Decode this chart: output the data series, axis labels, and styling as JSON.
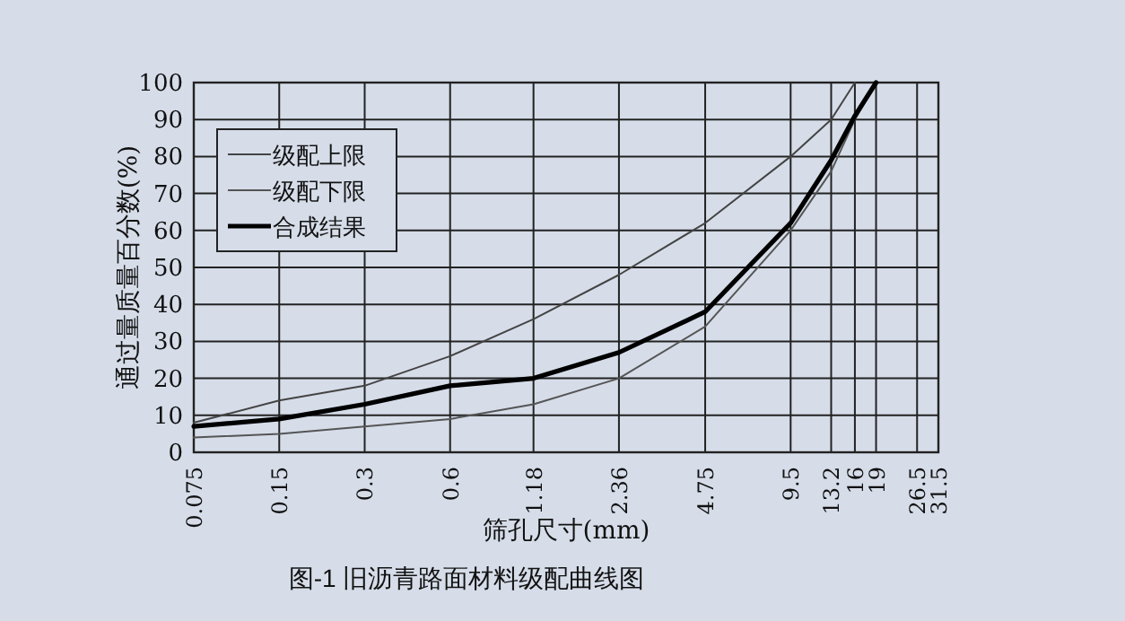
{
  "chart_data": {
    "type": "line",
    "xlabel": "筛孔尺寸(mm)",
    "ylabel": "通过量质量百分数(%)",
    "annotations": [
      "图-1 旧沥青路面材料级配曲线图"
    ],
    "log": "x",
    "xlim": [
      0.075,
      31.5
    ],
    "xticks": [
      0.075,
      0.15,
      0.3,
      0.6,
      1.18,
      2.36,
      4.75,
      9.5,
      13.2,
      16,
      19,
      26.5,
      31.5
    ],
    "ylim": [
      0,
      100
    ],
    "yticks": [
      0,
      10,
      20,
      30,
      40,
      50,
      60,
      70,
      80,
      90,
      100
    ],
    "grid": true,
    "legend": "top left",
    "marker": "none",
    "line_style": "solid",
    "series": [
      {
        "name": "级配上限",
        "color": "#444444",
        "x": [
          0.075,
          0.15,
          0.3,
          0.6,
          1.18,
          2.36,
          4.75,
          9.5,
          13.2,
          16
        ],
        "values": [
          8,
          14,
          18,
          26,
          36,
          48,
          62,
          80,
          90,
          100
        ]
      },
      {
        "name": "级配下限",
        "color": "#555555",
        "x": [
          0.075,
          0.15,
          0.3,
          0.6,
          1.18,
          2.36,
          4.75,
          9.5,
          13.2,
          16,
          19
        ],
        "values": [
          4,
          5,
          7,
          9,
          13,
          20,
          34,
          60,
          76,
          90,
          100
        ]
      },
      {
        "name": "合成结果",
        "color": "#000000",
        "x": [
          0.075,
          0.15,
          0.3,
          0.6,
          1.18,
          2.36,
          4.75,
          9.5,
          13.2,
          16,
          19
        ],
        "values": [
          7,
          9,
          13,
          18,
          20,
          27,
          38,
          62,
          79,
          91,
          100
        ]
      }
    ]
  }
}
